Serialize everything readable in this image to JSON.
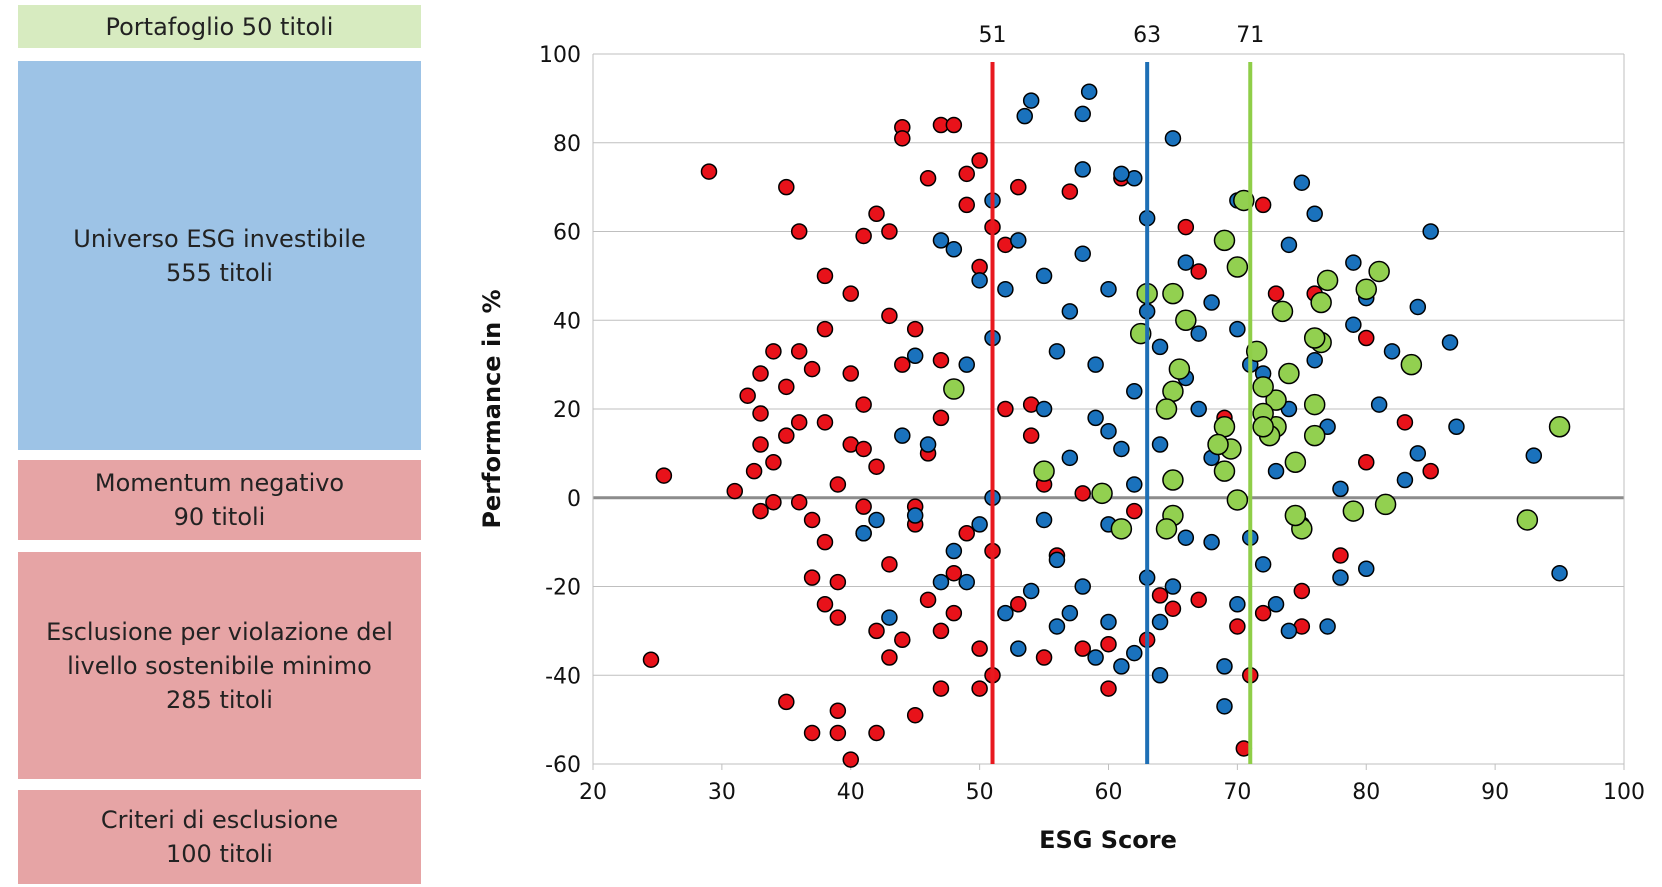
{
  "panel": [
    {
      "lines": [
        "Portafoglio 50 titoli"
      ],
      "color": "#d7ebc0"
    },
    {
      "lines": [
        "Universo ESG investibile",
        "555 titoli"
      ],
      "color": "#9dc3e6"
    },
    {
      "lines": [
        "Momentum negativo",
        "90 titoli"
      ],
      "color": "#e6a4a5"
    },
    {
      "lines": [
        "Esclusione per violazione del",
        "livello sostenibile minimo",
        "285 titoli"
      ],
      "color": "#e6a4a5"
    },
    {
      "lines": [
        "Criteri di esclusione",
        "100 titoli"
      ],
      "color": "#e6a4a5"
    }
  ],
  "chart_data": {
    "type": "scatter",
    "xlabel": "ESG Score",
    "ylabel": "Performance in %",
    "xlim": [
      20,
      100
    ],
    "ylim": [
      -60,
      100
    ],
    "xticks": [
      20,
      30,
      40,
      50,
      60,
      70,
      80,
      90,
      100
    ],
    "yticks": [
      -60,
      -40,
      -20,
      0,
      20,
      40,
      60,
      80,
      100
    ],
    "grid": true,
    "vlines": [
      51,
      63,
      71
    ],
    "vline_colors": [
      "#e8191f",
      "#1e6fb5",
      "#8fce48"
    ],
    "series": [
      {
        "color": "#e8121a",
        "x": [
          24.5,
          25.5,
          29,
          31,
          32,
          32.5,
          33,
          33,
          33,
          34,
          34,
          35,
          35,
          35,
          35,
          36,
          36,
          36,
          37,
          37,
          37,
          37,
          38,
          38,
          38,
          38,
          39,
          39,
          39,
          39,
          39,
          40,
          40,
          40,
          40,
          41,
          41,
          41,
          41,
          42,
          42,
          42,
          42,
          43,
          43,
          43,
          44,
          44,
          44,
          44,
          45,
          45,
          45,
          46,
          46,
          46,
          47,
          47,
          47,
          47,
          48,
          48,
          48,
          49,
          49,
          49,
          50,
          50,
          50,
          50,
          51,
          51,
          51,
          52,
          52,
          53,
          53,
          54,
          55,
          55,
          57,
          58,
          60,
          60,
          61,
          62,
          63,
          64,
          65,
          66,
          67,
          67,
          69,
          70,
          71,
          70.5,
          72,
          72,
          73,
          75,
          75,
          76,
          78,
          80,
          80,
          83,
          85,
          54,
          56,
          58,
          47,
          45,
          43,
          41,
          38,
          36,
          34,
          33
        ],
        "y": [
          -36.5,
          5,
          73.5,
          1.5,
          23,
          6,
          -3,
          12,
          19,
          33,
          8,
          70,
          -46,
          14,
          25,
          60,
          -1,
          17,
          -5,
          -18,
          -53,
          29,
          50,
          -24,
          -10,
          38,
          -27,
          -19,
          3,
          -48,
          -53,
          -59,
          46,
          28,
          12,
          59,
          -2,
          -8,
          21,
          64,
          -30,
          -53,
          7,
          60,
          -36,
          -15,
          83.5,
          81,
          -32,
          30,
          -49,
          -6,
          38,
          72,
          -23,
          10,
          84,
          -43,
          -30,
          31,
          84,
          -17,
          -26,
          73,
          66,
          -8,
          -43,
          -34,
          76,
          52,
          61,
          -40,
          -12,
          57,
          20,
          70,
          -24,
          14,
          -36,
          3,
          69,
          -34,
          -43,
          -33,
          72,
          -3,
          -32,
          -22,
          -25,
          61,
          -23,
          51,
          18,
          -29,
          -40,
          -56.5,
          66,
          -26,
          46,
          -21,
          -29,
          46,
          -13,
          36,
          8,
          17,
          6,
          21,
          -13,
          1,
          18,
          -2,
          41,
          11,
          17,
          33,
          -1,
          28
        ]
      },
      {
        "color": "#1a72bd",
        "x": [
          95,
          93,
          86.5,
          87,
          85,
          84,
          84,
          83,
          82,
          81,
          80,
          80,
          79,
          79,
          78,
          78,
          77,
          77,
          76,
          76,
          75,
          75,
          74,
          74,
          73,
          73,
          72,
          71,
          71,
          70,
          70,
          69,
          69,
          69,
          68,
          68,
          67,
          67,
          66,
          66,
          65,
          65,
          64,
          64,
          64,
          63,
          63,
          62,
          62,
          62,
          61,
          61,
          61,
          60,
          60,
          60,
          59,
          59,
          58.5,
          58,
          58,
          58,
          57,
          57,
          57,
          56,
          56,
          55,
          55,
          55,
          54,
          54,
          53.5,
          53,
          53,
          52,
          52,
          51,
          51,
          51,
          50,
          50,
          49,
          49,
          48,
          48,
          47,
          47,
          46,
          45,
          45,
          44,
          43,
          42,
          41,
          59,
          62,
          64,
          66,
          68,
          70,
          72,
          74,
          58,
          56,
          60,
          63
        ],
        "y": [
          -17,
          9.5,
          35,
          16,
          60,
          43,
          10,
          4,
          33,
          21,
          -16,
          45,
          53,
          39,
          2,
          -18,
          -29,
          16,
          64,
          31,
          71,
          -6,
          -30,
          57,
          -24,
          6,
          -15,
          -9,
          30,
          -24,
          67,
          -47,
          -38,
          58,
          44,
          -10,
          37,
          20,
          -9,
          53,
          81,
          -20,
          -40,
          -28,
          34,
          -18,
          63,
          -35,
          72,
          24,
          -38,
          73,
          11,
          47,
          -28,
          -6,
          30,
          -36,
          91.5,
          86.5,
          74,
          55,
          42,
          -26,
          9,
          -14,
          -29,
          50,
          20,
          -5,
          89.5,
          -21,
          86,
          58,
          -34,
          47,
          -26,
          67,
          36,
          0,
          49,
          -6,
          -19,
          30,
          -12,
          56,
          58,
          -19,
          12,
          32,
          -4,
          14,
          -27,
          -5,
          -8,
          18,
          3,
          12,
          27,
          9,
          38,
          28,
          20,
          -20,
          33,
          15,
          42
        ]
      },
      {
        "color": "#92d050",
        "x": [
          95,
          92.5,
          83.5,
          81.5,
          81,
          80,
          79,
          77,
          76.5,
          76.5,
          76,
          76,
          76,
          75,
          74.5,
          74.5,
          74,
          73.5,
          73,
          73,
          72.5,
          72,
          72,
          72,
          71.5,
          70.5,
          70,
          70,
          69.5,
          69,
          69,
          69,
          68.5,
          66,
          65.5,
          65,
          65,
          65,
          65,
          64.5,
          64.5,
          63,
          62.5,
          61,
          59.5,
          55,
          48
        ],
        "y": [
          16,
          -5,
          30,
          -1.5,
          51,
          47,
          -3,
          49,
          44,
          35,
          14,
          21,
          36,
          -7,
          8,
          -4,
          28,
          42,
          22,
          16,
          14,
          25,
          19,
          16,
          33,
          67,
          -0.5,
          52,
          11,
          58,
          6,
          16,
          12,
          40,
          29,
          46,
          24,
          4,
          -4,
          20,
          -7,
          46,
          37,
          -7,
          1,
          6,
          24.5
        ]
      }
    ]
  }
}
